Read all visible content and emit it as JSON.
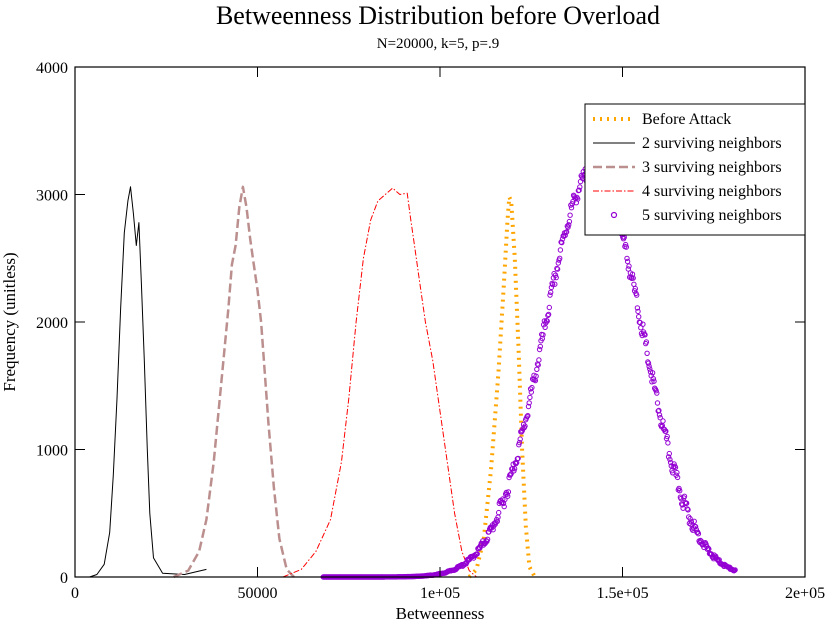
{
  "chart_data": {
    "type": "line",
    "title": "Betweenness Distribution before Overload",
    "subtitle": "N=20000, k=5, p=.9",
    "xlabel": "Betweenness",
    "ylabel": "Frequency (unitless)",
    "xlim": [
      0,
      200000
    ],
    "ylim": [
      0,
      4000
    ],
    "xticks": [
      0,
      50000,
      100000,
      150000,
      200000
    ],
    "xtick_labels": [
      "0",
      "50000",
      "1e+05",
      "1.5e+05",
      "2e+05"
    ],
    "yticks": [
      0,
      1000,
      2000,
      3000,
      4000
    ],
    "ytick_labels": [
      "0",
      "1000",
      "2000",
      "3000",
      "4000"
    ],
    "grid": false,
    "legend_position": "top-right",
    "series": [
      {
        "name": "Before Attack",
        "style": "dotted",
        "color": "#ffa500",
        "x": [
          108000,
          110000,
          112000,
          114000,
          116000,
          117500,
          118500,
          119000,
          119500,
          120500,
          121500,
          122500,
          123500,
          124500,
          126000
        ],
        "y": [
          0,
          60,
          300,
          850,
          1600,
          2300,
          2800,
          2980,
          2950,
          2500,
          1800,
          1000,
          400,
          80,
          0
        ]
      },
      {
        "name": "2 surviving neighbors",
        "style": "solid",
        "color": "#000000",
        "x": [
          4000,
          6000,
          8000,
          9500,
          10500,
          11500,
          12500,
          13500,
          14500,
          15200,
          16000,
          16800,
          17500,
          18200,
          19000,
          19800,
          20500,
          21500,
          24000,
          30000,
          36000
        ],
        "y": [
          0,
          20,
          100,
          350,
          800,
          1400,
          2100,
          2700,
          2950,
          3060,
          2850,
          2600,
          2780,
          2300,
          1700,
          1000,
          500,
          150,
          30,
          20,
          60
        ]
      },
      {
        "name": "3 surviving neighbors",
        "style": "dashed",
        "color": "#bc8f8f",
        "x": [
          27000,
          31000,
          34000,
          36000,
          38000,
          40000,
          42000,
          43000,
          44000,
          45000,
          46000,
          47000,
          48000,
          49000,
          50000,
          51000,
          52000,
          53000,
          54500,
          56000,
          58000,
          60000
        ],
        "y": [
          0,
          50,
          200,
          450,
          900,
          1500,
          2100,
          2450,
          2600,
          2900,
          3060,
          2900,
          2650,
          2450,
          2250,
          2000,
          1600,
          1200,
          700,
          300,
          60,
          0
        ]
      },
      {
        "name": "4 surviving neighbors",
        "style": "dashdot",
        "color": "#ff0000",
        "x": [
          57000,
          62000,
          66000,
          70000,
          73000,
          75000,
          77000,
          79000,
          81000,
          83000,
          85000,
          87000,
          89000,
          91000,
          92000,
          93000,
          94500,
          96000,
          98000,
          100000,
          102000,
          104000,
          106000,
          108000,
          110000
        ],
        "y": [
          0,
          60,
          200,
          450,
          900,
          1400,
          2000,
          2500,
          2800,
          2950,
          3000,
          3050,
          3000,
          3010,
          2800,
          2600,
          2300,
          2000,
          1700,
          1300,
          900,
          500,
          200,
          50,
          0
        ]
      },
      {
        "name": "5 surviving neighbors",
        "style": "circles",
        "color": "#9400d3",
        "mean": 142000,
        "peak": 3180,
        "sigma": 13500,
        "xmin": 68000,
        "xmax": 181000
      }
    ]
  }
}
